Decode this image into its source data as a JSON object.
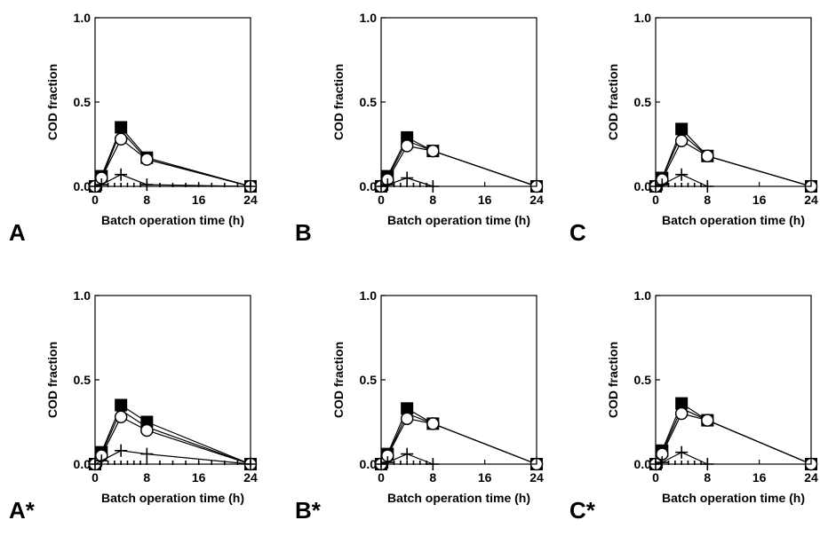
{
  "chart_data": [
    {
      "type": "line",
      "panel_label": "A",
      "xlabel": "Batch operation time (h)",
      "ylabel": "COD fraction",
      "xlim": [
        0,
        24
      ],
      "ylim": [
        0,
        1
      ],
      "xticks": [
        "0",
        "8",
        "16",
        "24"
      ],
      "yticks": [
        "0.0",
        "0.5",
        "1.0"
      ],
      "grid": false,
      "series": [
        {
          "marker": "filled-square",
          "x": [
            0,
            1,
            4,
            8,
            24
          ],
          "y": [
            0,
            0.06,
            0.35,
            0.17,
            0
          ]
        },
        {
          "marker": "filled-diamond",
          "x": [
            0,
            1,
            4,
            8,
            24
          ],
          "y": [
            0,
            0.05,
            0.33,
            0.16,
            0
          ]
        },
        {
          "marker": "open-circle",
          "x": [
            0,
            1,
            4,
            8,
            24
          ],
          "y": [
            0,
            0.05,
            0.28,
            0.16,
            0
          ]
        },
        {
          "marker": "plus",
          "x": [
            0,
            1,
            4,
            8,
            24
          ],
          "y": [
            0,
            0.01,
            0.07,
            0.01,
            0
          ]
        },
        {
          "marker": "dash",
          "x": [
            0,
            1,
            2,
            3,
            4,
            5,
            6,
            7,
            8,
            10,
            12,
            14,
            16,
            18,
            20,
            22,
            24
          ],
          "y": [
            0,
            0,
            0,
            0,
            0,
            0,
            0,
            0,
            0,
            0,
            0,
            0,
            0,
            0,
            0,
            0,
            0
          ]
        }
      ]
    },
    {
      "type": "line",
      "panel_label": "B",
      "xlabel": "Batch operation time (h)",
      "ylabel": "COD fraction",
      "xlim": [
        0,
        24
      ],
      "ylim": [
        0,
        1
      ],
      "xticks": [
        "0",
        "8",
        "16",
        "24"
      ],
      "yticks": [
        "0.0",
        "0.5",
        "1.0"
      ],
      "grid": false,
      "series": [
        {
          "marker": "filled-square",
          "x": [
            0,
            1,
            4,
            8,
            24
          ],
          "y": [
            0,
            0.06,
            0.29,
            0.21,
            0
          ]
        },
        {
          "marker": "filled-diamond",
          "x": [
            0,
            1,
            4,
            8,
            24
          ],
          "y": [
            0,
            0.05,
            0.27,
            0.21,
            0
          ]
        },
        {
          "marker": "open-circle",
          "x": [
            0,
            1,
            4,
            8,
            24
          ],
          "y": [
            0,
            0.04,
            0.24,
            0.21,
            0
          ]
        },
        {
          "marker": "plus",
          "x": [
            0,
            1,
            4,
            8
          ],
          "y": [
            0,
            0.01,
            0.05,
            0
          ]
        },
        {
          "marker": "dash",
          "x": [
            0,
            1,
            2,
            3,
            4,
            5,
            6,
            7,
            8
          ],
          "y": [
            0,
            0,
            0,
            0,
            0,
            0,
            0,
            0,
            0
          ]
        }
      ]
    },
    {
      "type": "line",
      "panel_label": "C",
      "xlabel": "Batch operation time (h)",
      "ylabel": "COD fraction",
      "xlim": [
        0,
        24
      ],
      "ylim": [
        0,
        1
      ],
      "xticks": [
        "0",
        "8",
        "16",
        "24"
      ],
      "yticks": [
        "0.0",
        "0.5",
        "1.0"
      ],
      "grid": false,
      "series": [
        {
          "marker": "filled-square",
          "x": [
            0,
            1,
            4,
            8,
            24
          ],
          "y": [
            0,
            0.05,
            0.34,
            0.18,
            0
          ]
        },
        {
          "marker": "filled-diamond",
          "x": [
            0,
            1,
            4,
            8,
            24
          ],
          "y": [
            0,
            0.05,
            0.31,
            0.18,
            0
          ]
        },
        {
          "marker": "open-circle",
          "x": [
            0,
            1,
            4,
            8,
            24
          ],
          "y": [
            0,
            0.04,
            0.27,
            0.18,
            0
          ]
        },
        {
          "marker": "plus",
          "x": [
            0,
            1,
            4,
            8
          ],
          "y": [
            0,
            0.01,
            0.07,
            0
          ]
        },
        {
          "marker": "dash",
          "x": [
            0,
            1,
            2,
            3,
            4,
            5,
            6,
            7,
            8
          ],
          "y": [
            0,
            0,
            0,
            0,
            0,
            0,
            0,
            0,
            0
          ]
        }
      ]
    },
    {
      "type": "line",
      "panel_label": "A*",
      "xlabel": "Batch operation time (h)",
      "ylabel": "COD fraction",
      "xlim": [
        0,
        24
      ],
      "ylim": [
        0,
        1
      ],
      "xticks": [
        "0",
        "8",
        "16",
        "24"
      ],
      "yticks": [
        "0.0",
        "0.5",
        "1.0"
      ],
      "grid": false,
      "series": [
        {
          "marker": "filled-square",
          "x": [
            0,
            1,
            4,
            8,
            24
          ],
          "y": [
            0,
            0.07,
            0.35,
            0.25,
            0
          ]
        },
        {
          "marker": "filled-diamond",
          "x": [
            0,
            1,
            4,
            8,
            24
          ],
          "y": [
            0,
            0.06,
            0.32,
            0.22,
            0
          ]
        },
        {
          "marker": "open-circle",
          "x": [
            0,
            1,
            4,
            8,
            24
          ],
          "y": [
            0,
            0.05,
            0.28,
            0.2,
            0
          ]
        },
        {
          "marker": "plus",
          "x": [
            0,
            1,
            4,
            8,
            24
          ],
          "y": [
            0,
            0.02,
            0.08,
            0.06,
            0
          ]
        },
        {
          "marker": "dash",
          "x": [
            0,
            1,
            2,
            3,
            4,
            5,
            6,
            7,
            8,
            10,
            12,
            14,
            16,
            18,
            20,
            22,
            24
          ],
          "y": [
            0,
            0,
            0,
            0,
            0,
            0,
            0,
            0,
            0,
            0,
            0,
            0,
            0,
            0,
            0,
            0,
            0
          ]
        }
      ]
    },
    {
      "type": "line",
      "panel_label": "B*",
      "xlabel": "Batch operation time (h)",
      "ylabel": "COD fraction",
      "xlim": [
        0,
        24
      ],
      "ylim": [
        0,
        1
      ],
      "xticks": [
        "0",
        "8",
        "16",
        "24"
      ],
      "yticks": [
        "0.0",
        "0.5",
        "1.0"
      ],
      "grid": false,
      "series": [
        {
          "marker": "filled-square",
          "x": [
            0,
            1,
            4,
            8,
            24
          ],
          "y": [
            0,
            0.06,
            0.33,
            0.24,
            0
          ]
        },
        {
          "marker": "filled-diamond",
          "x": [
            0,
            1,
            4,
            8,
            24
          ],
          "y": [
            0,
            0.05,
            0.3,
            0.24,
            0
          ]
        },
        {
          "marker": "open-circle",
          "x": [
            0,
            1,
            4,
            8,
            24
          ],
          "y": [
            0,
            0.05,
            0.27,
            0.24,
            0
          ]
        },
        {
          "marker": "plus",
          "x": [
            0,
            1,
            4,
            8
          ],
          "y": [
            0,
            0.01,
            0.06,
            0
          ]
        },
        {
          "marker": "dash",
          "x": [
            0,
            1,
            2,
            3,
            4,
            5,
            6,
            7,
            8
          ],
          "y": [
            0,
            0,
            0,
            0,
            0,
            0,
            0,
            0,
            0
          ]
        }
      ]
    },
    {
      "type": "line",
      "panel_label": "C*",
      "xlabel": "Batch operation time (h)",
      "ylabel": "COD fraction",
      "xlim": [
        0,
        24
      ],
      "ylim": [
        0,
        1
      ],
      "xticks": [
        "0",
        "8",
        "16",
        "24"
      ],
      "yticks": [
        "0.0",
        "0.5",
        "1.0"
      ],
      "grid": false,
      "series": [
        {
          "marker": "filled-square",
          "x": [
            0,
            1,
            4,
            8,
            24
          ],
          "y": [
            0,
            0.08,
            0.36,
            0.26,
            0
          ]
        },
        {
          "marker": "filled-diamond",
          "x": [
            0,
            1,
            4,
            8,
            24
          ],
          "y": [
            0,
            0.07,
            0.33,
            0.26,
            0
          ]
        },
        {
          "marker": "open-circle",
          "x": [
            0,
            1,
            4,
            8,
            24
          ],
          "y": [
            0,
            0.06,
            0.3,
            0.26,
            0
          ]
        },
        {
          "marker": "plus",
          "x": [
            0,
            1,
            4,
            8
          ],
          "y": [
            0,
            0.01,
            0.07,
            0
          ]
        },
        {
          "marker": "dash",
          "x": [
            0,
            1,
            2,
            3,
            4,
            5,
            6,
            7,
            8
          ],
          "y": [
            0,
            0,
            0,
            0,
            0,
            0,
            0,
            0,
            0
          ]
        }
      ]
    }
  ]
}
